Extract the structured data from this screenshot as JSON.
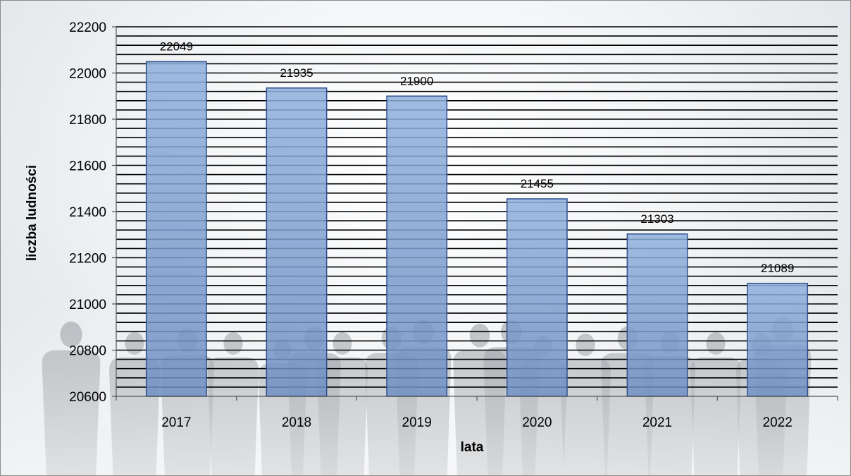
{
  "chart_data": {
    "type": "bar",
    "categories": [
      "2017",
      "2018",
      "2019",
      "2020",
      "2021",
      "2022"
    ],
    "values": [
      22049,
      21935,
      21900,
      21455,
      21303,
      21089
    ],
    "data_labels": [
      "22049",
      "21935",
      "21900",
      "21455",
      "21303",
      "21089"
    ],
    "xlabel": "lata",
    "ylabel": "liczba ludności",
    "ylim": [
      20600,
      22200
    ],
    "yticks": [
      "20600",
      "20800",
      "21000",
      "21200",
      "21400",
      "21600",
      "21800",
      "22000",
      "22200"
    ],
    "ytick_step": 200,
    "minor_gridline_step": 40,
    "grid": true,
    "legend": "none",
    "colors": {
      "bar_fill": "#7f9fcf",
      "bar_border": "#2f4f8f",
      "gridline": "#000000",
      "background_silhouettes": "#8a8f96"
    }
  }
}
